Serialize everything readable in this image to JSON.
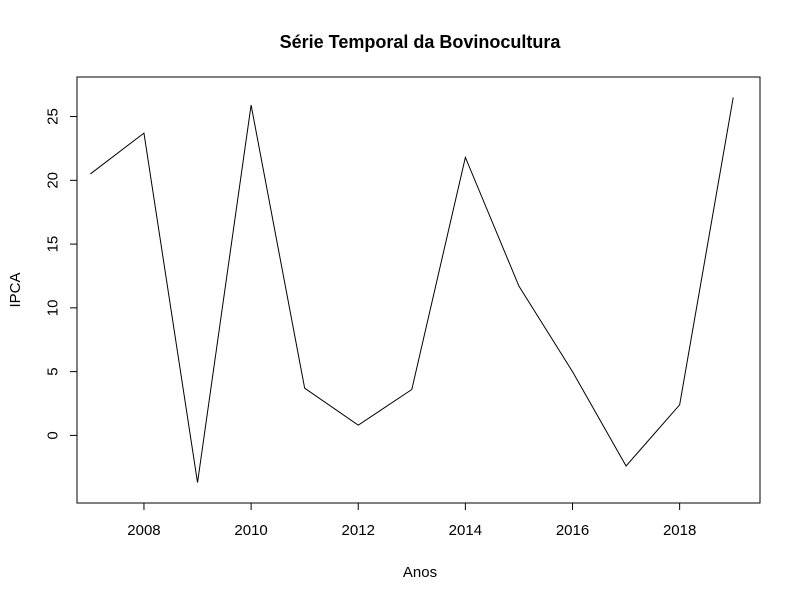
{
  "chart_data": {
    "type": "line",
    "title": "Série Temporal da Bovinocultura",
    "xlabel": "Anos",
    "ylabel": "IPCA",
    "x": [
      2007,
      2008,
      2009,
      2010,
      2011,
      2012,
      2013,
      2014,
      2015,
      2016,
      2017,
      2018,
      2019
    ],
    "series": [
      {
        "values": [
          20.5,
          23.7,
          -3.7,
          25.9,
          3.7,
          0.8,
          3.6,
          21.8,
          11.7,
          5.0,
          -2.4,
          2.4,
          26.5
        ]
      }
    ],
    "xlim": [
      2006.75,
      2019.5
    ],
    "ylim": [
      -5.3,
      28.1
    ],
    "xticks": [
      "2008",
      "2010",
      "2012",
      "2014",
      "2016",
      "2018"
    ],
    "yticks": [
      "0",
      "5",
      "10",
      "15",
      "20",
      "25"
    ],
    "grid": false,
    "line_color": "#000000"
  }
}
